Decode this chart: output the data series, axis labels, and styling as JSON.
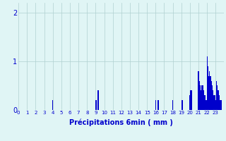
{
  "title": "",
  "xlabel": "Précipitations 6min ( mm )",
  "ylabel": "",
  "bar_color": "#0000cc",
  "background_color": "#e0f5f5",
  "grid_color": "#b0d0d0",
  "text_color": "#0000cc",
  "ylim": [
    0,
    2.2
  ],
  "yticks": [
    0,
    1,
    2
  ],
  "xlabel_fontsize": 7,
  "ytick_fontsize": 7,
  "xtick_fontsize": 5,
  "xtick_labels": [
    "0",
    "1",
    "2",
    "3",
    "4",
    "5",
    "6",
    "7",
    "8",
    "9",
    "10",
    "11",
    "12",
    "13",
    "14",
    "15",
    "16",
    "17",
    "18",
    "19",
    "20",
    "21",
    "22",
    "23"
  ],
  "values": [
    0,
    0,
    0,
    0,
    0,
    0,
    0,
    0,
    0,
    0,
    0,
    0,
    0,
    0,
    0,
    0,
    0,
    0,
    0,
    0,
    0,
    0,
    0,
    0,
    0,
    0,
    0,
    0,
    0,
    0,
    0,
    0,
    0,
    0,
    0,
    0,
    0,
    0,
    0,
    0,
    0.2,
    0,
    0,
    0,
    0,
    0,
    0,
    0,
    0,
    0,
    0,
    0,
    0,
    0,
    0,
    0,
    0,
    0,
    0,
    0,
    0,
    0,
    0,
    0,
    0,
    0,
    0,
    0,
    0,
    0,
    0,
    0,
    0,
    0,
    0,
    0,
    0,
    0,
    0,
    0,
    0,
    0,
    0,
    0,
    0,
    0,
    0,
    0,
    0,
    0,
    0.2,
    0.2,
    0,
    0.4,
    0,
    0,
    0,
    0,
    0,
    0,
    0,
    0,
    0,
    0,
    0,
    0,
    0,
    0,
    0,
    0,
    0,
    0,
    0,
    0,
    0,
    0,
    0,
    0,
    0,
    0,
    0,
    0,
    0,
    0,
    0,
    0,
    0,
    0,
    0,
    0,
    0,
    0,
    0,
    0,
    0,
    0,
    0,
    0,
    0,
    0,
    0,
    0,
    0,
    0,
    0,
    0,
    0,
    0,
    0,
    0,
    0,
    0,
    0,
    0,
    0,
    0,
    0,
    0,
    0,
    0,
    0.2,
    0,
    0,
    0.2,
    0,
    0,
    0,
    0,
    0,
    0,
    0,
    0,
    0,
    0,
    0,
    0,
    0,
    0,
    0,
    0,
    0.2,
    0,
    0,
    0,
    0,
    0,
    0,
    0,
    0,
    0,
    0,
    0.2,
    0,
    0,
    0,
    0,
    0,
    0,
    0,
    0,
    0.3,
    0.4,
    0.4,
    0,
    0,
    0,
    0,
    0,
    0,
    0,
    0.8,
    0.6,
    0.5,
    0.4,
    0.5,
    0.5,
    0.4,
    0.3,
    0.3,
    0.2,
    1.1,
    0.9,
    0.7,
    0.8,
    0.7,
    0.6,
    0.5,
    0.4,
    0.3,
    0.3,
    0.2,
    0.6,
    0.5,
    0.4,
    0.3,
    0.2,
    0.2,
    0.2,
    0,
    0
  ]
}
